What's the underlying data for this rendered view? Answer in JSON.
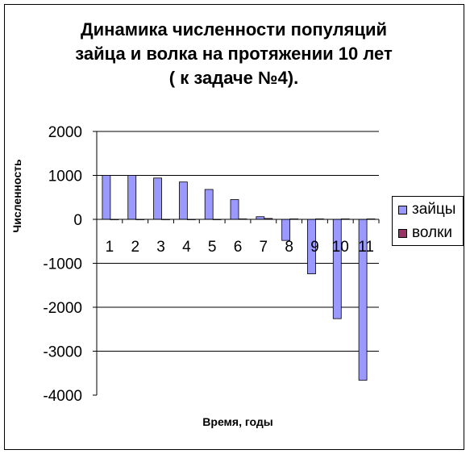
{
  "chart_data": {
    "type": "bar",
    "title_lines": [
      "Динамика численности популяций",
      "зайца и волка на протяжении 10 лет",
      "( к задаче №4)."
    ],
    "xlabel": "Время, годы",
    "ylabel": "Численность",
    "categories": [
      "1",
      "2",
      "3",
      "4",
      "5",
      "6",
      "7",
      "8",
      "9",
      "10",
      "11"
    ],
    "ylim": [
      -4000,
      2000
    ],
    "yticks": [
      "2000",
      "1000",
      "0",
      "-1000",
      "-2000",
      "-3000",
      "-4000"
    ],
    "ytick_values": [
      2000,
      1000,
      0,
      -1000,
      -2000,
      -3000,
      -4000
    ],
    "grid": true,
    "legend_position": "right",
    "series": [
      {
        "name": "зайцы",
        "color": "#9999ff",
        "values": [
          1000,
          1000,
          940,
          850,
          680,
          450,
          60,
          -480,
          -1240,
          -2260,
          -3660
        ]
      },
      {
        "name": "волки",
        "color": "#993366",
        "values": [
          0,
          0,
          0,
          0,
          0,
          10,
          20,
          10,
          10,
          10,
          10
        ]
      }
    ]
  }
}
